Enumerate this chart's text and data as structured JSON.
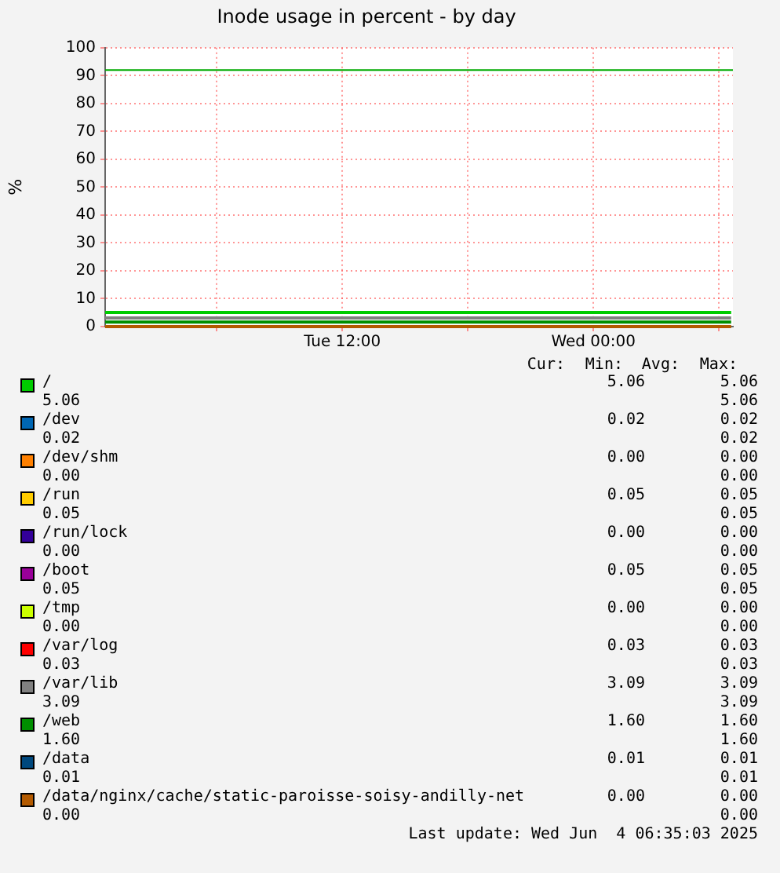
{
  "chart_data": {
    "type": "line",
    "title": "Inode usage in percent - by day",
    "ylabel": "%",
    "x": [
      "2025-06-03T00:40",
      "2025-06-04T06:35"
    ],
    "xlim": [
      "2025-06-03T00:40",
      "2025-06-04T06:40"
    ],
    "xticks": [
      {
        "value": "2025-06-03T06:00",
        "label": null
      },
      {
        "value": "2025-06-03T12:00",
        "label": "Tue 12:00"
      },
      {
        "value": "2025-06-03T18:00",
        "label": null
      },
      {
        "value": "2025-06-04T00:00",
        "label": "Wed 00:00"
      },
      {
        "value": "2025-06-04T06:00",
        "label": null
      }
    ],
    "ylim": [
      0,
      100
    ],
    "yticks": [
      0,
      10,
      20,
      30,
      40,
      50,
      60,
      70,
      80,
      90,
      100
    ],
    "series": [
      {
        "name": "/",
        "color": "#00cc00",
        "values": [
          5.06,
          5.06
        ]
      },
      {
        "name": "/dev",
        "color": "#0066b3",
        "values": [
          null,
          null
        ]
      },
      {
        "name": "/dev/shm",
        "color": "#ff8000",
        "values": [
          null,
          null
        ]
      },
      {
        "name": "/run",
        "color": "#ffcc00",
        "values": [
          null,
          null
        ]
      },
      {
        "name": "/run/lock",
        "color": "#330099",
        "values": [
          null,
          null
        ]
      },
      {
        "name": "/boot",
        "color": "#990099",
        "values": [
          null,
          null
        ]
      },
      {
        "name": "/tmp",
        "color": "#ccff00",
        "values": [
          null,
          null
        ]
      },
      {
        "name": "/var/log",
        "color": "#ff0000",
        "values": [
          null,
          null
        ]
      },
      {
        "name": "/var/lib",
        "color": "#808080",
        "values": [
          3.09,
          3.09
        ]
      },
      {
        "name": "/web",
        "color": "#008f00",
        "values": [
          1.6,
          1.6
        ]
      },
      {
        "name": "/data",
        "color": "#00487d",
        "values": [
          null,
          null
        ]
      },
      {
        "name": "/data/nginx/cache/static-paroisse-soisy-andilly-net",
        "color": "#b35a00",
        "values": [
          0,
          0
        ]
      }
    ],
    "ref_lines": [
      {
        "axis": "y",
        "value": 92,
        "color": "#00aa00"
      }
    ],
    "grid": true,
    "legend": "bottom",
    "annotations": [
      "Cur:",
      "Min:",
      "Avg:",
      "Max:",
      "5.06",
      "5.06",
      "5.06",
      "5.06",
      "0.02",
      "0.02",
      "0.02",
      "0.02",
      "0.00",
      "0.00",
      "0.00",
      "0.00",
      "0.05",
      "0.05",
      "0.05",
      "0.05",
      "0.00",
      "0.00",
      "0.00",
      "0.00",
      "0.05",
      "0.05",
      "0.05",
      "0.05",
      "0.00",
      "0.00",
      "0.00",
      "0.00",
      "0.03",
      "0.03",
      "0.03",
      "0.03",
      "3.09",
      "3.09",
      "3.09",
      "3.09",
      "1.60",
      "1.60",
      "1.60",
      "1.60",
      "0.01",
      "0.01",
      "0.01",
      "0.01",
      "0.00",
      "0.00",
      "0.00",
      "0.00",
      "Last update: Wed Jun  4 06:35:03 2025"
    ]
  }
}
